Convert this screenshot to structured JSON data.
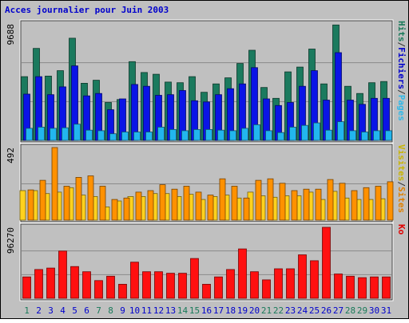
{
  "chart_data": {
    "type": "bar",
    "title": "Acces journalier pour Juin 2003",
    "days": [
      "1",
      "2",
      "3",
      "4",
      "5",
      "6",
      "7",
      "8",
      "9",
      "10",
      "11",
      "12",
      "13",
      "14",
      "15",
      "16",
      "17",
      "18",
      "19",
      "20",
      "21",
      "22",
      "23",
      "24",
      "25",
      "26",
      "27",
      "28",
      "29",
      "30",
      "31"
    ],
    "weekend_days": [
      "1",
      "7",
      "8",
      "14",
      "15",
      "21",
      "22",
      "28",
      "29"
    ],
    "panels": [
      {
        "id": "hits-panel",
        "axis_max_label": "9688",
        "ymax": 9688,
        "side_labels": [
          {
            "text": "Hits",
            "color": "#1a7a5a"
          },
          {
            "text": "/",
            "color": "#303030"
          },
          {
            "text": "Fichiers",
            "color": "#0000cc"
          },
          {
            "text": "/",
            "color": "#303030"
          },
          {
            "text": "Pages",
            "color": "#30b8e8"
          }
        ],
        "series": [
          {
            "name": "Hits",
            "color": "#1b7a5e",
            "values": [
              5300,
              7650,
              5350,
              5800,
              8500,
              4750,
              5000,
              3150,
              3400,
              6550,
              5650,
              5500,
              4850,
              4800,
              5300,
              4000,
              4700,
              5200,
              6400,
              7500,
              4400,
              3500,
              5700,
              6100,
              7600,
              4700,
              9600,
              4500,
              3900,
              4800,
              4900
            ]
          },
          {
            "name": "Fichiers",
            "color": "#0a14e6",
            "values": [
              3850,
              5300,
              3800,
              4450,
              6200,
              3700,
              3900,
              2550,
              3450,
              4650,
              4500,
              3750,
              3800,
              4150,
              3300,
              3200,
              3800,
              4300,
              4700,
              6050,
              3450,
              2900,
              3150,
              4500,
              5800,
              3350,
              7300,
              3350,
              3000,
              3500,
              3500
            ]
          },
          {
            "name": "Pages",
            "color": "#22b6ee",
            "values": [
              1000,
              1100,
              1000,
              1050,
              1350,
              850,
              800,
              550,
              700,
              700,
              700,
              1100,
              900,
              800,
              900,
              900,
              850,
              800,
              1000,
              1300,
              800,
              650,
              1100,
              1250,
              1450,
              850,
              1550,
              800,
              700,
              800,
              800
            ]
          }
        ]
      },
      {
        "id": "visits-panel",
        "axis_max_label": "492",
        "ymax": 492,
        "side_labels": [
          {
            "text": "Visites",
            "color": "#c8b400"
          },
          {
            "text": "/",
            "color": "#303030"
          },
          {
            "text": "Sites",
            "color": "#e08000"
          }
        ],
        "series": [
          {
            "name": "Sites",
            "color": "#ffd21e",
            "values": [
              200,
              200,
              180,
              190,
              220,
              170,
              160,
              90,
              130,
              160,
              160,
              180,
              180,
              160,
              175,
              140,
              160,
              170,
              150,
              190,
              165,
              155,
              165,
              165,
              190,
              140,
              195,
              150,
              140,
              140,
              145
            ]
          },
          {
            "name": "Visites",
            "color": "#ff9100",
            "values": [
              205,
              270,
              500,
              230,
              290,
              300,
              230,
              140,
              150,
              190,
              200,
              240,
              210,
              230,
              190,
              170,
              280,
              230,
              150,
              270,
              280,
              250,
              200,
              210,
              210,
              275,
              250,
              200,
              220,
              230,
              260
            ]
          }
        ]
      },
      {
        "id": "ko-panel",
        "axis_max_label": "96270",
        "ymax": 96270,
        "side_labels": [
          {
            "text": "Ko",
            "color": "#e00000"
          }
        ],
        "series": [
          {
            "name": "Ko",
            "color": "#ff1010",
            "values": [
              29000,
              39000,
              41000,
              64000,
              43000,
              36000,
              24000,
              30000,
              19000,
              49000,
              36000,
              36000,
              34000,
              34000,
              54000,
              19000,
              29000,
              39000,
              67000,
              36000,
              25000,
              40000,
              40000,
              59000,
              51000,
              97000,
              33000,
              30000,
              28000,
              29000,
              29000
            ]
          }
        ]
      }
    ]
  },
  "colors": {
    "background": "#c0c0c0",
    "title": "#0000cc",
    "weekday_label": "#0000cc",
    "weekend_label": "#1a7a5a",
    "grid": "#808080"
  }
}
